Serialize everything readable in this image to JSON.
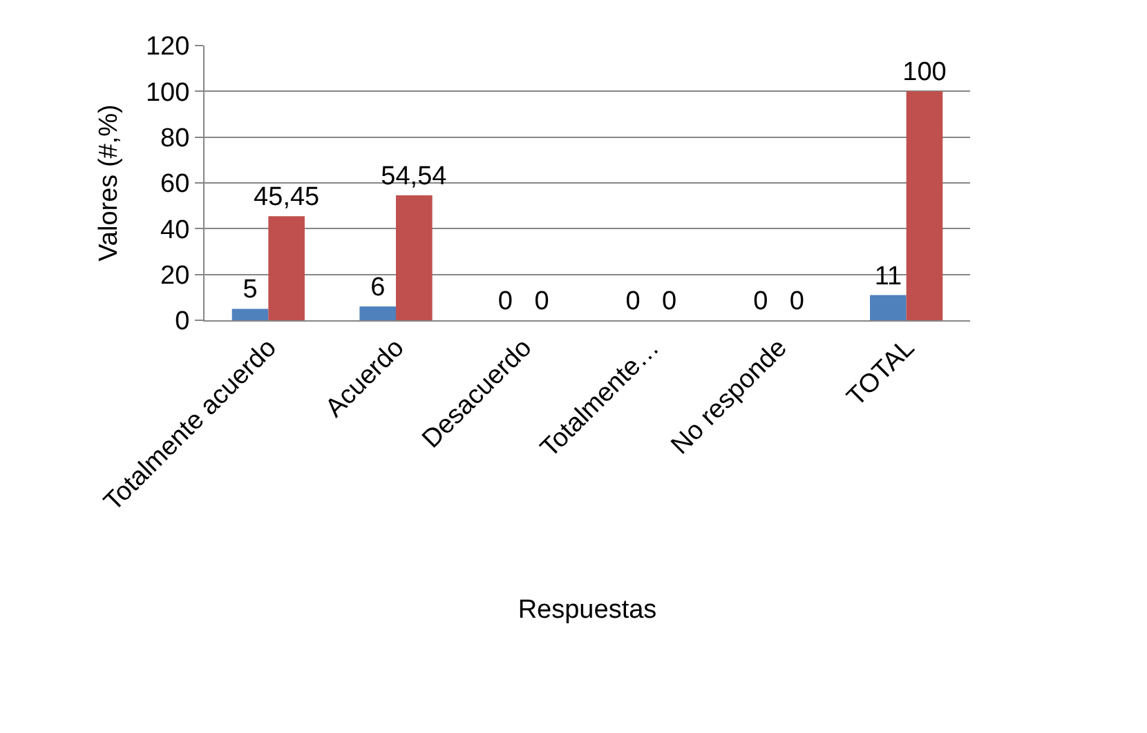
{
  "chart_data": {
    "type": "bar",
    "xlabel": "Respuestas",
    "ylabel": "Valores (#,%)",
    "categories": [
      "Totalmente acuerdo",
      "Acuerdo",
      "Desacuerdo",
      "Totalmente…",
      "No responde",
      "TOTAL"
    ],
    "series": [
      {
        "color": "#4f81bd",
        "values": [
          5,
          6,
          0,
          0,
          0,
          11
        ],
        "value_labels": [
          "5",
          "6",
          "0",
          "0",
          "0",
          "11"
        ]
      },
      {
        "color": "#c0504d",
        "values": [
          45.45,
          54.54,
          0,
          0,
          0,
          100
        ],
        "value_labels": [
          "45,45",
          "54,54",
          "0",
          "0",
          "0",
          "100"
        ]
      }
    ],
    "ylim": [
      0,
      120
    ],
    "yticks": [
      0,
      20,
      40,
      60,
      80,
      100,
      120
    ],
    "grid": "y"
  }
}
